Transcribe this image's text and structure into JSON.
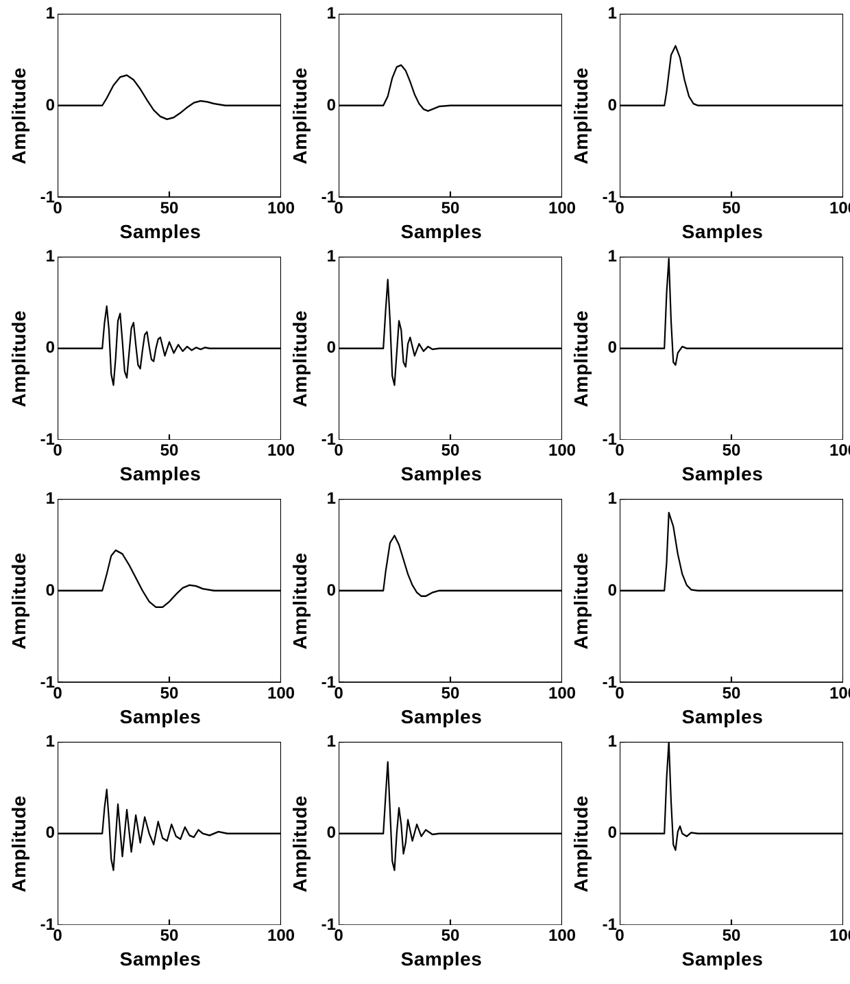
{
  "layout": {
    "rows": 4,
    "cols": 3
  },
  "style": {
    "background_color": "#ffffff",
    "line_color": "#000000",
    "line_width": 2,
    "axis_color": "#000000",
    "label_fontsize": 28,
    "tick_fontsize": 24,
    "font_weight": "bold"
  },
  "axes": {
    "xlabel": "Samples",
    "ylabel": "Amplitude",
    "xlim": [
      0,
      100
    ],
    "ylim": [
      -1,
      1
    ],
    "xticks": [
      0,
      50,
      100
    ],
    "yticks": [
      -1,
      0,
      1
    ],
    "xtick_labels": [
      "0",
      "50",
      "100"
    ],
    "ytick_labels": [
      "-1",
      "0",
      "1"
    ]
  },
  "signals": [
    {
      "row": 0,
      "col": 0,
      "type": "smooth_pulse_undershoot",
      "x": [
        0,
        20,
        22,
        25,
        28,
        31,
        34,
        37,
        40,
        43,
        46,
        49,
        52,
        55,
        58,
        61,
        64,
        67,
        70,
        75,
        80,
        100
      ],
      "y": [
        0,
        0,
        0.08,
        0.22,
        0.31,
        0.33,
        0.28,
        0.18,
        0.06,
        -0.05,
        -0.12,
        -0.15,
        -0.13,
        -0.08,
        -0.02,
        0.03,
        0.05,
        0.04,
        0.02,
        0.0,
        0,
        0
      ]
    },
    {
      "row": 0,
      "col": 1,
      "type": "narrow_pulse_undershoot",
      "x": [
        0,
        20,
        22,
        24,
        26,
        28,
        30,
        32,
        34,
        36,
        38,
        40,
        42,
        45,
        50,
        100
      ],
      "y": [
        0,
        0,
        0.1,
        0.3,
        0.42,
        0.44,
        0.38,
        0.26,
        0.12,
        0.02,
        -0.04,
        -0.06,
        -0.04,
        -0.01,
        0,
        0
      ]
    },
    {
      "row": 0,
      "col": 2,
      "type": "spike",
      "x": [
        0,
        20,
        21,
        23,
        25,
        27,
        29,
        31,
        33,
        35,
        40,
        100
      ],
      "y": [
        0,
        0,
        0.15,
        0.55,
        0.65,
        0.52,
        0.28,
        0.1,
        0.02,
        0,
        0,
        0
      ]
    },
    {
      "row": 1,
      "col": 0,
      "type": "damped_oscillation",
      "x": [
        0,
        20,
        21,
        22,
        23,
        24,
        25,
        26,
        27,
        28,
        29,
        30,
        31,
        32,
        33,
        34,
        35,
        36,
        37,
        38,
        39,
        40,
        41,
        42,
        43,
        44,
        45,
        46,
        48,
        50,
        52,
        54,
        56,
        58,
        60,
        62,
        64,
        66,
        68,
        70,
        75,
        80,
        100
      ],
      "y": [
        0,
        0,
        0.28,
        0.46,
        0.2,
        -0.28,
        -0.4,
        -0.1,
        0.3,
        0.38,
        0.08,
        -0.25,
        -0.32,
        -0.05,
        0.22,
        0.28,
        0.04,
        -0.18,
        -0.22,
        -0.02,
        0.15,
        0.18,
        0.02,
        -0.12,
        -0.14,
        0,
        0.1,
        0.12,
        -0.08,
        0.07,
        -0.05,
        0.04,
        -0.03,
        0.02,
        -0.02,
        0.01,
        -0.01,
        0.01,
        0,
        0,
        0,
        0,
        0
      ]
    },
    {
      "row": 1,
      "col": 1,
      "type": "damped_oscillation_fast",
      "x": [
        0,
        20,
        21,
        22,
        23,
        24,
        25,
        26,
        27,
        28,
        29,
        30,
        31,
        32,
        34,
        36,
        38,
        40,
        42,
        45,
        50,
        100
      ],
      "y": [
        0,
        0,
        0.4,
        0.75,
        0.3,
        -0.3,
        -0.4,
        -0.05,
        0.3,
        0.2,
        -0.15,
        -0.2,
        0.05,
        0.12,
        -0.08,
        0.05,
        -0.03,
        0.02,
        -0.01,
        0,
        0,
        0
      ]
    },
    {
      "row": 1,
      "col": 2,
      "type": "impulse_undershoot",
      "x": [
        0,
        20,
        21,
        22,
        23,
        24,
        25,
        26,
        28,
        30,
        35,
        100
      ],
      "y": [
        0,
        0,
        0.6,
        0.98,
        0.3,
        -0.15,
        -0.18,
        -0.05,
        0.02,
        0,
        0,
        0
      ]
    },
    {
      "row": 2,
      "col": 0,
      "type": "asym_pulse_undershoot",
      "x": [
        0,
        20,
        22,
        24,
        26,
        29,
        32,
        35,
        38,
        41,
        44,
        47,
        50,
        53,
        56,
        59,
        62,
        65,
        70,
        75,
        100
      ],
      "y": [
        0,
        0,
        0.18,
        0.38,
        0.44,
        0.4,
        0.28,
        0.14,
        0.0,
        -0.12,
        -0.18,
        -0.18,
        -0.12,
        -0.04,
        0.03,
        0.06,
        0.05,
        0.02,
        0.0,
        0,
        0
      ]
    },
    {
      "row": 2,
      "col": 1,
      "type": "asym_narrow_pulse",
      "x": [
        0,
        20,
        21,
        23,
        25,
        27,
        29,
        31,
        33,
        35,
        37,
        39,
        42,
        45,
        50,
        100
      ],
      "y": [
        0,
        0,
        0.2,
        0.52,
        0.6,
        0.5,
        0.34,
        0.18,
        0.06,
        -0.02,
        -0.06,
        -0.06,
        -0.02,
        0,
        0,
        0
      ]
    },
    {
      "row": 2,
      "col": 2,
      "type": "sharp_spike",
      "x": [
        0,
        20,
        21,
        22,
        24,
        26,
        28,
        30,
        32,
        35,
        40,
        100
      ],
      "y": [
        0,
        0,
        0.3,
        0.85,
        0.7,
        0.4,
        0.18,
        0.06,
        0.01,
        0,
        0,
        0
      ]
    },
    {
      "row": 3,
      "col": 0,
      "type": "mixed_oscillation",
      "x": [
        0,
        20,
        21,
        22,
        23,
        24,
        25,
        27,
        29,
        31,
        33,
        35,
        37,
        39,
        41,
        43,
        45,
        47,
        49,
        51,
        53,
        55,
        57,
        59,
        61,
        63,
        65,
        68,
        72,
        76,
        80,
        100
      ],
      "y": [
        0,
        0,
        0.28,
        0.48,
        0.15,
        -0.28,
        -0.4,
        0.32,
        -0.25,
        0.26,
        -0.2,
        0.2,
        -0.1,
        0.18,
        0.0,
        -0.12,
        0.13,
        -0.05,
        -0.08,
        0.1,
        -0.03,
        -0.06,
        0.07,
        -0.02,
        -0.04,
        0.04,
        0.0,
        -0.02,
        0.02,
        0,
        0,
        0
      ]
    },
    {
      "row": 3,
      "col": 1,
      "type": "mixed_oscillation_fast",
      "x": [
        0,
        20,
        21,
        22,
        23,
        24,
        25,
        26,
        27,
        28,
        29,
        30,
        31,
        33,
        35,
        37,
        39,
        42,
        45,
        50,
        100
      ],
      "y": [
        0,
        0,
        0.4,
        0.78,
        0.25,
        -0.3,
        -0.4,
        0.0,
        0.28,
        0.1,
        -0.22,
        -0.1,
        0.15,
        -0.08,
        0.1,
        -0.03,
        0.04,
        -0.01,
        0,
        0,
        0
      ]
    },
    {
      "row": 3,
      "col": 2,
      "type": "impulse_ringing",
      "x": [
        0,
        20,
        21,
        22,
        23,
        24,
        25,
        26,
        27,
        28,
        30,
        32,
        35,
        100
      ],
      "y": [
        0,
        0,
        0.6,
        1.0,
        0.35,
        -0.12,
        -0.18,
        0.02,
        0.08,
        0.0,
        -0.03,
        0.01,
        0,
        0
      ]
    }
  ]
}
